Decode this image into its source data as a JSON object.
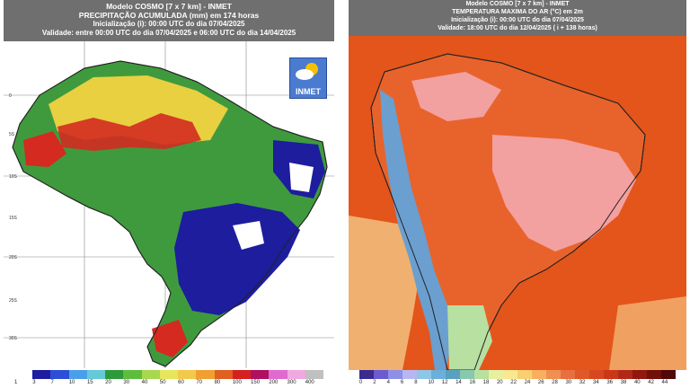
{
  "left": {
    "header": {
      "line1": "Modelo COSMO [7 x 7 km] - INMET",
      "line2": "PRECIPITAÇÃO ACUMULADA (mm) em 174 horas",
      "line3": "Inicialização (i): 00:00 UTC do dia 07/04/2025",
      "line4": "Validade: entre 00:00 UTC do dia 07/04/2025 e 06:00 UTC do dia 14/04/2025"
    },
    "logo_text": "INMET",
    "lat_labels": [
      "0",
      "5S",
      "10S",
      "15S",
      "20S",
      "25S",
      "30S"
    ],
    "legend_ticks": [
      "1",
      "3",
      "7",
      "10",
      "15",
      "20",
      "30",
      "40",
      "50",
      "60",
      "70",
      "80",
      "100",
      "150",
      "200",
      "300",
      "400"
    ],
    "legend_colors": [
      "#ffffff",
      "#1d1d9e",
      "#2c4fd6",
      "#4aa0e8",
      "#66c9d8",
      "#2d9a3a",
      "#5ebd3f",
      "#a8d84d",
      "#e6e65a",
      "#f2c94a",
      "#f0a030",
      "#e06020",
      "#d42020",
      "#b01060",
      "#e06ad0",
      "#f0a8e0",
      "#c0c0c0"
    ],
    "colors": {
      "ocean": "#ffffff",
      "border": "#222222"
    }
  },
  "right": {
    "header": {
      "line1": "Modelo COSMO [7 x 7 km] - INMET",
      "line2": "TEMPERATURA MAXIMA DO AR (°C) em 2m",
      "line3": "Inicialização (i): 00:00 UTC do dia 07/04/2025",
      "line4": "Validade: 18:00 UTC do dia 12/04/2025 ( i + 138 horas)"
    },
    "legend_ticks": [
      "0",
      "2",
      "4",
      "6",
      "8",
      "10",
      "12",
      "14",
      "16",
      "18",
      "20",
      "22",
      "24",
      "26",
      "28",
      "30",
      "32",
      "34",
      "36",
      "38",
      "40",
      "42",
      "44"
    ],
    "legend_colors": [
      "#3b2b8f",
      "#6a5bd0",
      "#8f8fe6",
      "#b5b8f0",
      "#8ec6e8",
      "#6ab0d8",
      "#5aa0c0",
      "#88c8b0",
      "#b8e0a0",
      "#e8f0a0",
      "#f8e890",
      "#f8d070",
      "#f8b060",
      "#f09050",
      "#e87040",
      "#e05828",
      "#d84820",
      "#c83818",
      "#b02818",
      "#901810",
      "#701008",
      "#500808"
    ],
    "colors": {
      "ocean": "#e3551b",
      "land_hot": "#f3a0a0",
      "border": "#222222"
    }
  }
}
